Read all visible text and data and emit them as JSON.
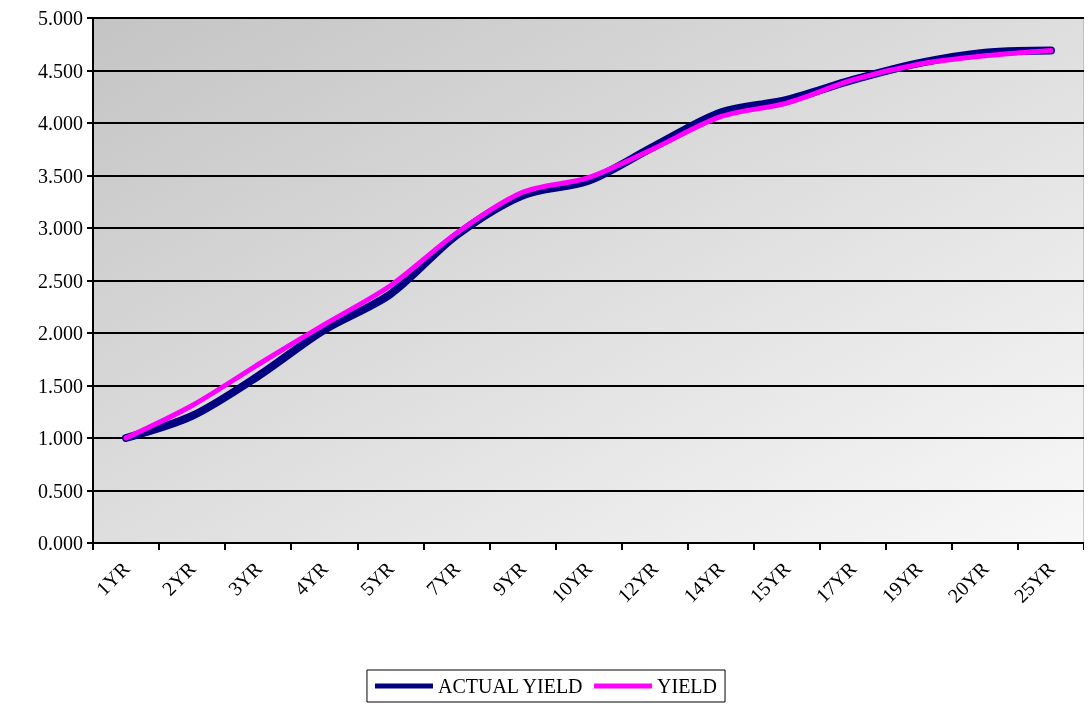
{
  "chart_data": {
    "type": "line",
    "categories": [
      "1YR",
      "2YR",
      "3YR",
      "4YR",
      "5YR",
      "7YR",
      "9YR",
      "10YR",
      "12YR",
      "14YR",
      "15YR",
      "17YR",
      "19YR",
      "20YR",
      "25YR"
    ],
    "series": [
      {
        "name": "ACTUAL YIELD",
        "color": "#000080",
        "values": [
          1.0,
          1.21,
          1.59,
          2.03,
          2.37,
          2.93,
          3.31,
          3.45,
          3.78,
          4.1,
          4.22,
          4.41,
          4.57,
          4.67,
          4.69
        ]
      },
      {
        "name": "YIELD",
        "color": "#ff00ff",
        "values": [
          1.0,
          1.31,
          1.7,
          2.08,
          2.45,
          2.95,
          3.34,
          3.48,
          3.76,
          4.06,
          4.19,
          4.41,
          4.56,
          4.64,
          4.69
        ]
      }
    ],
    "ylim": [
      0,
      5
    ],
    "yticks": [
      {
        "value": 0,
        "label": "0.000"
      },
      {
        "value": 0.5,
        "label": "0.500"
      },
      {
        "value": 1,
        "label": "1.000"
      },
      {
        "value": 1.5,
        "label": "1.500"
      },
      {
        "value": 2,
        "label": "2.000"
      },
      {
        "value": 2.5,
        "label": "2.500"
      },
      {
        "value": 3,
        "label": "3.000"
      },
      {
        "value": 3.5,
        "label": "3.500"
      },
      {
        "value": 4,
        "label": "4.000"
      },
      {
        "value": 4.5,
        "label": "4.500"
      },
      {
        "value": 5,
        "label": "5.000"
      }
    ],
    "grid": "y",
    "legend": "bottom",
    "marker": "none",
    "line_style": "solid"
  }
}
